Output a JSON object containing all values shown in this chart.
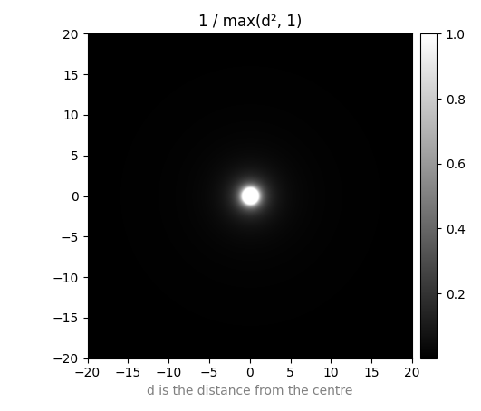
{
  "title": "1 / max(d², 1)",
  "xlabel": "d is the distance from the centre",
  "xlim": [
    -20,
    20
  ],
  "ylim": [
    -20,
    20
  ],
  "xticks": [
    -20,
    -15,
    -10,
    -5,
    0,
    5,
    10,
    15,
    20
  ],
  "yticks": [
    -20,
    -15,
    -10,
    -5,
    0,
    5,
    10,
    15,
    20
  ],
  "cmap": "gray",
  "vmin": 0,
  "vmax": 1,
  "grid_points": 400,
  "figsize": [
    5.31,
    4.54
  ],
  "dpi": 100,
  "xlabel_color": "#808080",
  "title_fontsize": 12,
  "cbar_ticks": [
    0.2,
    0.4,
    0.6,
    0.8,
    1.0
  ]
}
